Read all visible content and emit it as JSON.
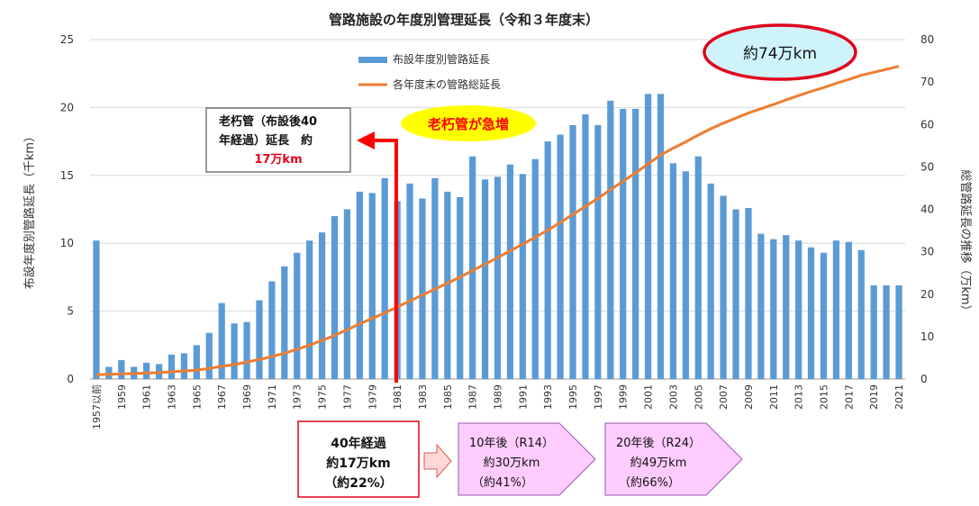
{
  "chart_data": {
    "type": "bar+line",
    "title": "管路施設の年度別管理延長（令和３年度末）",
    "ylabel_left": "布設年度別管路延長（千km）",
    "ylabel_right": "総管路延長の推移（万km）",
    "ylim_left": [
      0,
      25
    ],
    "ylim_right": [
      0,
      80
    ],
    "yticks_left": [
      "0",
      "5",
      "10",
      "15",
      "20",
      "25"
    ],
    "yticks_right": [
      "0",
      "10",
      "20",
      "30",
      "40",
      "50",
      "60",
      "70",
      "80"
    ],
    "categories": [
      "1957以前",
      "1958",
      "1959",
      "1960",
      "1961",
      "1962",
      "1963",
      "1964",
      "1965",
      "1966",
      "1967",
      "1968",
      "1969",
      "1970",
      "1971",
      "1972",
      "1973",
      "1974",
      "1975",
      "1976",
      "1977",
      "1978",
      "1979",
      "1980",
      "1981",
      "1982",
      "1983",
      "1984",
      "1985",
      "1986",
      "1987",
      "1988",
      "1989",
      "1990",
      "1991",
      "1992",
      "1993",
      "1994",
      "1995",
      "1996",
      "1997",
      "1998",
      "1999",
      "2000",
      "2001",
      "2002",
      "2003",
      "2004",
      "2005",
      "2006",
      "2007",
      "2008",
      "2009",
      "2010",
      "2011",
      "2012",
      "2013",
      "2014",
      "2015",
      "2016",
      "2017",
      "2018",
      "2019",
      "2020",
      "2021"
    ],
    "xtick_labels": [
      "1957以前",
      "1959",
      "1961",
      "1963",
      "1965",
      "1967",
      "1969",
      "1971",
      "1973",
      "1975",
      "1977",
      "1979",
      "1981",
      "1983",
      "1985",
      "1987",
      "1989",
      "1991",
      "1993",
      "1995",
      "1997",
      "1999",
      "2001",
      "2003",
      "2005",
      "2007",
      "2009",
      "2011",
      "2013",
      "2015",
      "2017",
      "2019",
      "2021"
    ],
    "series": [
      {
        "name": "布設年度別管路延長",
        "type": "bar",
        "axis": "left",
        "color": "#5b9bd5",
        "values": [
          10.2,
          0.9,
          1.4,
          0.9,
          1.2,
          1.1,
          1.8,
          1.9,
          2.5,
          3.4,
          5.6,
          4.1,
          4.2,
          5.8,
          7.2,
          8.3,
          9.3,
          10.2,
          10.8,
          12.0,
          12.5,
          13.8,
          13.7,
          14.8,
          13.1,
          14.4,
          13.3,
          14.8,
          13.8,
          13.4,
          16.4,
          14.7,
          14.9,
          15.8,
          15.1,
          16.2,
          17.5,
          18.0,
          18.7,
          19.5,
          18.7,
          20.5,
          19.9,
          19.9,
          21.0,
          21.0,
          15.9,
          15.3,
          16.4,
          14.4,
          13.5,
          12.5,
          12.6,
          10.7,
          10.3,
          10.6,
          10.2,
          9.7,
          9.3,
          10.2,
          10.1,
          9.5,
          6.9,
          6.9,
          6.9
        ]
      },
      {
        "name": "各年度末の管路総延長",
        "type": "line",
        "axis": "right",
        "color": "#ed7d31",
        "values": [
          1.0,
          1.1,
          1.2,
          1.3,
          1.4,
          1.5,
          1.7,
          1.9,
          2.1,
          2.5,
          3.0,
          3.4,
          4.0,
          4.6,
          5.3,
          6.1,
          7.0,
          8.0,
          9.1,
          10.3,
          11.6,
          13.0,
          14.3,
          15.6,
          17.0,
          18.4,
          19.8,
          21.2,
          22.6,
          24.0,
          25.6,
          27.1,
          28.6,
          30.2,
          31.8,
          33.4,
          35.1,
          36.9,
          38.8,
          40.7,
          42.6,
          44.6,
          46.6,
          48.6,
          50.7,
          52.8,
          54.4,
          55.9,
          57.5,
          59.0,
          60.3,
          61.5,
          62.7,
          63.7,
          64.7,
          65.8,
          66.8,
          67.8,
          68.7,
          69.7,
          70.6,
          71.6,
          72.3,
          73.0,
          73.7
        ]
      }
    ],
    "annotations": {
      "total_now": "約74万km",
      "surge": "老朽管が急増",
      "aged_line1": "老朽管（布設後40",
      "aged_line2": "年経過）延長　約",
      "aged_line3": "17万km",
      "projections": [
        {
          "line1": "40年経過",
          "line2": "約17万km",
          "line3": "（約22%）"
        },
        {
          "line1": "10年後（R14）",
          "line2": "約30万km",
          "line3": "（約41%）"
        },
        {
          "line1": "20年後（R24）",
          "line2": "約49万km",
          "line3": "（約66%）"
        }
      ]
    }
  },
  "colors": {
    "bar": "#5b9bd5",
    "line": "#ed7d31",
    "arrow": "#ff0000",
    "ellipse_fill": "#cff3fb",
    "ellipse_stroke": "#e0001b",
    "surge_fill": "#ffff00",
    "surge_text": "#ff0000",
    "box_red": "#e0001b",
    "pentagon_fill": "#ffccff",
    "pentagon_stroke": "#9b59b6",
    "small_arrow_fill": "#ffd7d7",
    "small_arrow_stroke": "#e05b5b"
  }
}
